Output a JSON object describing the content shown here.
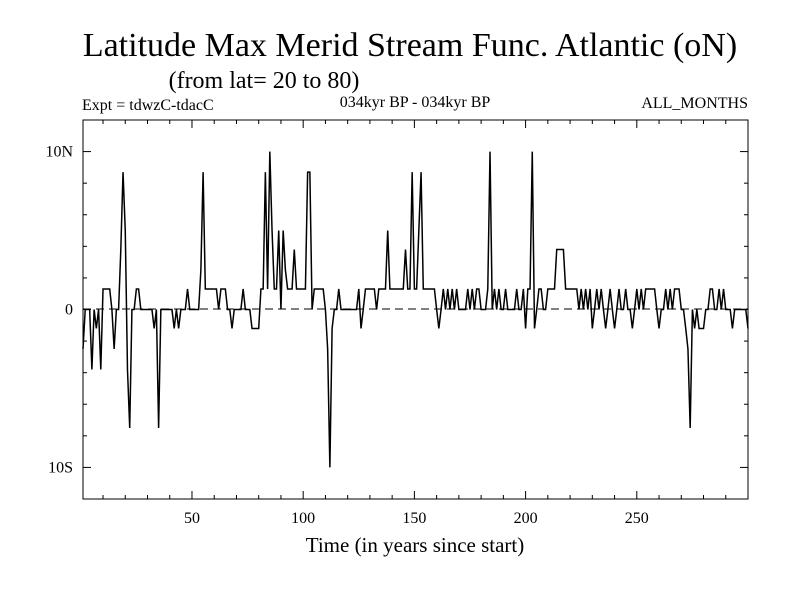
{
  "chart_data": {
    "type": "line",
    "title": "Latitude Max Merid Stream Func. Atlantic (oN)",
    "subtitle": "(from lat= 20 to 80)",
    "header_left": "Expt = tdwzC-tdacC",
    "header_center": "034kyr BP - 034kyr BP",
    "header_right": "ALL_MONTHS",
    "xlabel": "Time (in years since start)",
    "ylabel": "",
    "xlim": [
      1,
      300
    ],
    "ylim": [
      -12,
      12
    ],
    "x_ticks": [
      50,
      100,
      150,
      200,
      250
    ],
    "x_tick_labels": [
      "50",
      "100",
      "150",
      "200",
      "250"
    ],
    "y_ticks": [
      10,
      0,
      -10
    ],
    "y_tick_labels": [
      "10N",
      "0",
      "10S"
    ],
    "zero_line": "dashed",
    "series": [
      {
        "name": "Latitude Max Merid Stream Func. Atlantic",
        "points": [
          [
            1,
            -2.5
          ],
          [
            2,
            0
          ],
          [
            3,
            0
          ],
          [
            4,
            0
          ],
          [
            5,
            -3.8
          ],
          [
            6,
            0
          ],
          [
            7,
            -1.2
          ],
          [
            8,
            0
          ],
          [
            9,
            -3.8
          ],
          [
            10,
            1.3
          ],
          [
            11,
            1.3
          ],
          [
            12,
            1.3
          ],
          [
            13,
            1.3
          ],
          [
            14,
            0
          ],
          [
            15,
            -2.5
          ],
          [
            16,
            0
          ],
          [
            17,
            0
          ],
          [
            18,
            3.8
          ],
          [
            19,
            8.7
          ],
          [
            20,
            5
          ],
          [
            21,
            -3.8
          ],
          [
            22,
            -7.5
          ],
          [
            23,
            0
          ],
          [
            24,
            0
          ],
          [
            25,
            1.3
          ],
          [
            26,
            1.3
          ],
          [
            27,
            0
          ],
          [
            28,
            0
          ],
          [
            29,
            0
          ],
          [
            30,
            0
          ],
          [
            31,
            0
          ],
          [
            32,
            0
          ],
          [
            33,
            -1.2
          ],
          [
            34,
            0
          ],
          [
            35,
            -7.5
          ],
          [
            36,
            0
          ],
          [
            37,
            0
          ],
          [
            38,
            0
          ],
          [
            39,
            0
          ],
          [
            40,
            0
          ],
          [
            41,
            0
          ],
          [
            42,
            -1.2
          ],
          [
            43,
            0
          ],
          [
            44,
            -1.2
          ],
          [
            45,
            0
          ],
          [
            46,
            0
          ],
          [
            47,
            0
          ],
          [
            48,
            1.3
          ],
          [
            49,
            0
          ],
          [
            50,
            0
          ],
          [
            51,
            0
          ],
          [
            52,
            0
          ],
          [
            53,
            0
          ],
          [
            54,
            2.5
          ],
          [
            55,
            8.7
          ],
          [
            56,
            1.3
          ],
          [
            57,
            1.3
          ],
          [
            58,
            1.3
          ],
          [
            59,
            1.3
          ],
          [
            60,
            1.3
          ],
          [
            61,
            1.3
          ],
          [
            62,
            0
          ],
          [
            63,
            1.3
          ],
          [
            64,
            1.3
          ],
          [
            65,
            1.3
          ],
          [
            66,
            0
          ],
          [
            67,
            0
          ],
          [
            68,
            -1.2
          ],
          [
            69,
            0
          ],
          [
            70,
            0
          ],
          [
            71,
            0
          ],
          [
            72,
            0
          ],
          [
            73,
            1.3
          ],
          [
            74,
            0
          ],
          [
            75,
            0
          ],
          [
            76,
            0
          ],
          [
            77,
            -1.2
          ],
          [
            78,
            -1.2
          ],
          [
            79,
            -1.2
          ],
          [
            80,
            -1.2
          ],
          [
            81,
            1.3
          ],
          [
            82,
            1.3
          ],
          [
            83,
            8.7
          ],
          [
            84,
            1.3
          ],
          [
            85,
            10
          ],
          [
            86,
            5
          ],
          [
            87,
            1.3
          ],
          [
            88,
            1.3
          ],
          [
            89,
            5
          ],
          [
            90,
            0
          ],
          [
            91,
            5
          ],
          [
            92,
            2.5
          ],
          [
            93,
            1.3
          ],
          [
            94,
            1.3
          ],
          [
            95,
            1.3
          ],
          [
            96,
            3.8
          ],
          [
            97,
            1.3
          ],
          [
            98,
            1.3
          ],
          [
            99,
            1.3
          ],
          [
            100,
            1.3
          ],
          [
            101,
            1.3
          ],
          [
            102,
            8.7
          ],
          [
            103,
            8.7
          ],
          [
            104,
            0
          ],
          [
            105,
            1.3
          ],
          [
            106,
            1.3
          ],
          [
            107,
            1.3
          ],
          [
            108,
            1.3
          ],
          [
            109,
            1.3
          ],
          [
            110,
            0
          ],
          [
            111,
            -2.5
          ],
          [
            112,
            -10
          ],
          [
            113,
            -1.2
          ],
          [
            114,
            0
          ],
          [
            115,
            0
          ],
          [
            116,
            1.3
          ],
          [
            117,
            0
          ],
          [
            118,
            0
          ],
          [
            119,
            0
          ],
          [
            120,
            0
          ],
          [
            121,
            0
          ],
          [
            122,
            0
          ],
          [
            123,
            0
          ],
          [
            124,
            0
          ],
          [
            125,
            1.3
          ],
          [
            126,
            -1.2
          ],
          [
            127,
            0
          ],
          [
            128,
            1.3
          ],
          [
            129,
            1.3
          ],
          [
            130,
            1.3
          ],
          [
            131,
            1.3
          ],
          [
            132,
            1.3
          ],
          [
            133,
            0
          ],
          [
            134,
            1.3
          ],
          [
            135,
            1.3
          ],
          [
            136,
            1.3
          ],
          [
            137,
            1.3
          ],
          [
            138,
            5
          ],
          [
            139,
            1.3
          ],
          [
            140,
            1.3
          ],
          [
            141,
            1.3
          ],
          [
            142,
            1.3
          ],
          [
            143,
            1.3
          ],
          [
            144,
            1.3
          ],
          [
            145,
            1.3
          ],
          [
            146,
            3.8
          ],
          [
            147,
            1.3
          ],
          [
            148,
            1.3
          ],
          [
            149,
            8.7
          ],
          [
            150,
            1.3
          ],
          [
            151,
            1.3
          ],
          [
            152,
            5
          ],
          [
            153,
            8.7
          ],
          [
            154,
            1.3
          ],
          [
            155,
            1.3
          ],
          [
            156,
            1.3
          ],
          [
            157,
            1.3
          ],
          [
            158,
            1.3
          ],
          [
            159,
            1.3
          ],
          [
            160,
            0
          ],
          [
            161,
            -1.2
          ],
          [
            162,
            0
          ],
          [
            163,
            1.3
          ],
          [
            164,
            0
          ],
          [
            165,
            1.3
          ],
          [
            166,
            0
          ],
          [
            167,
            1.3
          ],
          [
            168,
            0
          ],
          [
            169,
            1.3
          ],
          [
            170,
            0
          ],
          [
            171,
            0
          ],
          [
            172,
            0
          ],
          [
            173,
            0
          ],
          [
            174,
            1.3
          ],
          [
            175,
            0
          ],
          [
            176,
            1.3
          ],
          [
            177,
            0
          ],
          [
            178,
            1.3
          ],
          [
            179,
            1.3
          ],
          [
            180,
            0
          ],
          [
            181,
            0
          ],
          [
            182,
            0
          ],
          [
            183,
            1.3
          ],
          [
            184,
            10
          ],
          [
            185,
            0
          ],
          [
            186,
            1.3
          ],
          [
            187,
            0
          ],
          [
            188,
            1.3
          ],
          [
            189,
            0
          ],
          [
            190,
            0
          ],
          [
            191,
            1.3
          ],
          [
            192,
            0
          ],
          [
            193,
            0
          ],
          [
            194,
            0
          ],
          [
            195,
            0
          ],
          [
            196,
            1.3
          ],
          [
            197,
            0
          ],
          [
            198,
            0
          ],
          [
            199,
            1.3
          ],
          [
            200,
            -1.2
          ],
          [
            201,
            1.3
          ],
          [
            202,
            1.3
          ],
          [
            203,
            10
          ],
          [
            204,
            -1.2
          ],
          [
            205,
            0
          ],
          [
            206,
            1.3
          ],
          [
            207,
            1.3
          ],
          [
            208,
            0
          ],
          [
            209,
            0
          ],
          [
            210,
            1.3
          ],
          [
            211,
            1.3
          ],
          [
            212,
            1.3
          ],
          [
            213,
            1.3
          ],
          [
            214,
            3.8
          ],
          [
            215,
            3.8
          ],
          [
            216,
            3.8
          ],
          [
            217,
            3.8
          ],
          [
            218,
            1.3
          ],
          [
            219,
            1.3
          ],
          [
            220,
            1.3
          ],
          [
            221,
            1.3
          ],
          [
            222,
            1.3
          ],
          [
            223,
            1.3
          ],
          [
            224,
            0
          ],
          [
            225,
            1.3
          ],
          [
            226,
            0
          ],
          [
            227,
            1.3
          ],
          [
            228,
            0
          ],
          [
            229,
            1.3
          ],
          [
            230,
            -1.2
          ],
          [
            231,
            0
          ],
          [
            232,
            1.3
          ],
          [
            233,
            0
          ],
          [
            234,
            1.3
          ],
          [
            235,
            0
          ],
          [
            236,
            -1.2
          ],
          [
            237,
            0
          ],
          [
            238,
            1.3
          ],
          [
            239,
            0
          ],
          [
            240,
            -1.2
          ],
          [
            241,
            0
          ],
          [
            242,
            1.3
          ],
          [
            243,
            0
          ],
          [
            244,
            0
          ],
          [
            245,
            1.3
          ],
          [
            246,
            0
          ],
          [
            247,
            0
          ],
          [
            248,
            -1.2
          ],
          [
            249,
            0
          ],
          [
            250,
            1.3
          ],
          [
            251,
            0
          ],
          [
            252,
            1.3
          ],
          [
            253,
            0
          ],
          [
            254,
            1.3
          ],
          [
            255,
            1.3
          ],
          [
            256,
            1.3
          ],
          [
            257,
            1.3
          ],
          [
            258,
            1.3
          ],
          [
            259,
            0
          ],
          [
            260,
            -1.2
          ],
          [
            261,
            0
          ],
          [
            262,
            0
          ],
          [
            263,
            1.3
          ],
          [
            264,
            0
          ],
          [
            265,
            1.3
          ],
          [
            266,
            0
          ],
          [
            267,
            1.3
          ],
          [
            268,
            1.3
          ],
          [
            269,
            1.3
          ],
          [
            270,
            0
          ],
          [
            271,
            0
          ],
          [
            272,
            -1.2
          ],
          [
            273,
            -2.5
          ],
          [
            274,
            -7.5
          ],
          [
            275,
            0
          ],
          [
            276,
            -1.2
          ],
          [
            277,
            0
          ],
          [
            278,
            -1.2
          ],
          [
            279,
            -1.2
          ],
          [
            280,
            -1.2
          ],
          [
            281,
            0
          ],
          [
            282,
            0
          ],
          [
            283,
            1.3
          ],
          [
            284,
            1.3
          ],
          [
            285,
            0
          ],
          [
            286,
            0
          ],
          [
            287,
            1.3
          ],
          [
            288,
            0
          ],
          [
            289,
            1.3
          ],
          [
            290,
            0
          ],
          [
            291,
            0
          ],
          [
            292,
            0
          ],
          [
            293,
            -1.2
          ],
          [
            294,
            0
          ],
          [
            295,
            0
          ],
          [
            296,
            0
          ],
          [
            297,
            0
          ],
          [
            298,
            0
          ],
          [
            299,
            0
          ],
          [
            300,
            -1.2
          ]
        ]
      }
    ]
  }
}
